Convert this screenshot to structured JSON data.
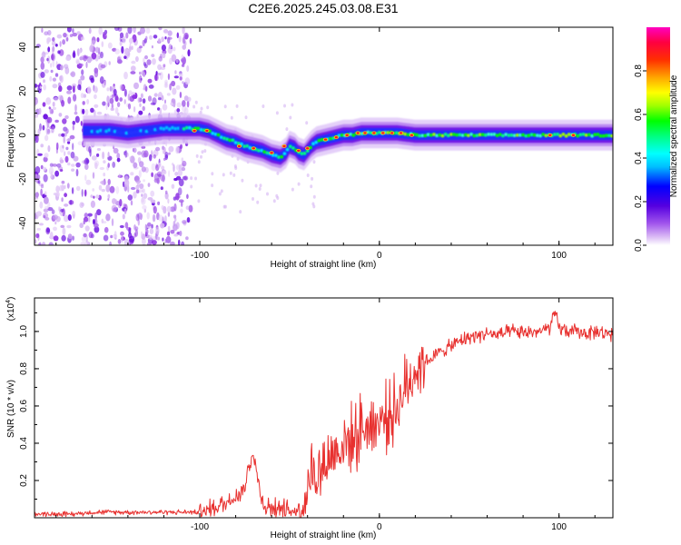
{
  "title": "C2E6.2025.245.03.08.E31",
  "colors": {
    "snr_line": "#e8312f",
    "axis": "#000000",
    "background": "#ffffff"
  },
  "chart_data": [
    {
      "type": "heatmap",
      "name": "spectrogram",
      "xlabel": "Height of straight line (km)",
      "ylabel": "Frequency (Hz)",
      "xlim": [
        -192,
        130
      ],
      "ylim": [
        -50,
        49
      ],
      "xticks": [
        -100,
        0,
        100
      ],
      "xtick_labels": [
        "-100",
        "0",
        "100"
      ],
      "yticks": [
        40,
        20,
        0,
        -20,
        -40
      ],
      "ytick_labels": [
        "40",
        "20",
        "0",
        "-20",
        "-40"
      ],
      "colorbar": {
        "label": "Normalized spectral amplitude",
        "range": [
          0,
          1
        ],
        "ticks": [
          0.0,
          0.2,
          0.4,
          0.6,
          0.8
        ],
        "tick_labels": [
          "0.0",
          "0.2",
          "0.4",
          "0.6",
          "0.8"
        ],
        "colormap": [
          "#ffffff",
          "#d9b8f5",
          "#8a2be2",
          "#5500e0",
          "#0000ff",
          "#00bfff",
          "#00ffff",
          "#00ff80",
          "#00ff00",
          "#a0ff00",
          "#ffff00",
          "#ffa500",
          "#ff3000",
          "#ff0040",
          "#ff00c0"
        ]
      },
      "ridge": {
        "description": "frequency track of strongest spectral amplitude vs height",
        "x": [
          -160,
          -150,
          -140,
          -130,
          -120,
          -110,
          -100,
          -95,
          -90,
          -85,
          -80,
          -75,
          -70,
          -65,
          -60,
          -55,
          -52,
          -50,
          -47,
          -45,
          -42,
          -40,
          -38,
          -35,
          -30,
          -25,
          -20,
          -15,
          -10,
          -5,
          0,
          10,
          20,
          40,
          60,
          80,
          100,
          120,
          130
        ],
        "y": [
          2,
          2,
          1,
          2,
          3,
          3,
          3,
          2,
          0,
          -2,
          -3,
          -5,
          -6,
          -7,
          -9,
          -10,
          -8,
          -5,
          -6,
          -8,
          -9,
          -7,
          -5,
          -3,
          -2,
          -1,
          0,
          0,
          1,
          1,
          1,
          1,
          0,
          0,
          0,
          0,
          0,
          0,
          0
        ],
        "max_amplitude_region": [
          -20,
          130
        ],
        "noise_region": [
          -192,
          -105
        ]
      }
    },
    {
      "type": "line",
      "name": "snr",
      "xlabel": "Height of straight line (km)",
      "ylabel": "SNR (10 * v/v)",
      "multiplier_label": "(x10",
      "multiplier_exponent": "4",
      "xlim": [
        -192,
        130
      ],
      "ylim": [
        0.0,
        1.18
      ],
      "xticks": [
        -100,
        0,
        100
      ],
      "xtick_labels": [
        "-100",
        "0",
        "100"
      ],
      "yticks": [
        0.2,
        0.4,
        0.6,
        0.8,
        1.0
      ],
      "ytick_labels": [
        "0.2",
        "0.4",
        "0.6",
        "0.8",
        "1.0"
      ],
      "series": [
        {
          "name": "SNR",
          "x": [
            -192,
            -180,
            -170,
            -160,
            -150,
            -140,
            -130,
            -120,
            -110,
            -100,
            -95,
            -90,
            -85,
            -80,
            -75,
            -72,
            -70,
            -68,
            -66,
            -64,
            -62,
            -60,
            -55,
            -50,
            -45,
            -42,
            -40,
            -38,
            -35,
            -30,
            -25,
            -20,
            -15,
            -10,
            -5,
            0,
            5,
            10,
            15,
            20,
            25,
            30,
            35,
            40,
            45,
            50,
            55,
            60,
            65,
            70,
            75,
            80,
            85,
            90,
            95,
            98,
            100,
            105,
            110,
            115,
            120,
            125,
            130
          ],
          "y": [
            0.02,
            0.02,
            0.02,
            0.03,
            0.03,
            0.03,
            0.03,
            0.03,
            0.03,
            0.03,
            0.05,
            0.06,
            0.08,
            0.12,
            0.16,
            0.3,
            0.36,
            0.22,
            0.12,
            0.07,
            0.06,
            0.05,
            0.05,
            0.04,
            0.04,
            0.08,
            0.18,
            0.26,
            0.22,
            0.3,
            0.35,
            0.4,
            0.42,
            0.48,
            0.5,
            0.52,
            0.55,
            0.6,
            0.7,
            0.8,
            0.84,
            0.86,
            0.9,
            0.92,
            0.95,
            0.97,
            0.98,
            0.99,
            0.98,
            0.99,
            1.0,
            0.99,
            1.0,
            1.0,
            1.02,
            1.1,
            1.02,
            1.0,
            1.0,
            0.99,
            1.0,
            0.99,
            0.99
          ]
        }
      ]
    }
  ]
}
